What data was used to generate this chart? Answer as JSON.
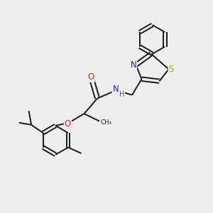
{
  "bg_color": "#eeeeee",
  "bond_color": "#1a1a1a",
  "bond_width": 1.4,
  "atom_colors": {
    "N": "#2222cc",
    "O": "#dd2222",
    "S": "#bbaa00",
    "C": "#1a1a1a",
    "H": "#555555"
  },
  "font_size_atom": 8.5,
  "font_size_small": 7.0
}
